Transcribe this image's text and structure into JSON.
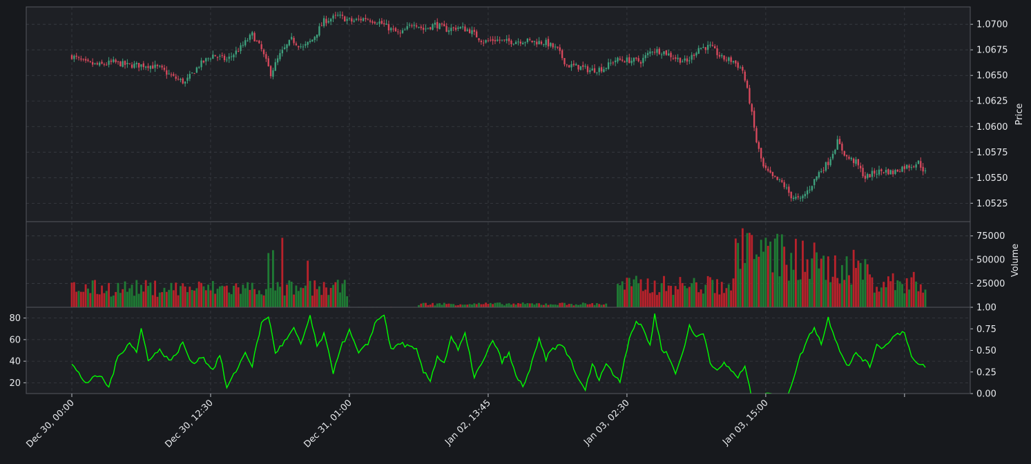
{
  "chart_data": [
    {
      "type": "candlestick",
      "panel": "price",
      "ylabel": "Price",
      "y_axis_side": "right",
      "ylim": [
        1.0507,
        1.0717
      ],
      "yticks": [
        1.0525,
        1.055,
        1.0575,
        1.06,
        1.0625,
        1.065,
        1.0675,
        1.07
      ],
      "ytick_labels": [
        "1.0525",
        "1.0550",
        "1.0575",
        "1.0600",
        "1.0625",
        "1.0650",
        "1.0675",
        "1.0700"
      ],
      "grid": true,
      "colors": {
        "up": "#3fa27e",
        "down": "#d9495d"
      },
      "trend_points": [
        [
          0,
          1.0669
        ],
        [
          6,
          1.0662
        ],
        [
          12,
          1.066
        ],
        [
          18,
          1.0663
        ],
        [
          24,
          1.066
        ],
        [
          33,
          1.066
        ],
        [
          38,
          1.0657
        ],
        [
          44,
          1.0648
        ],
        [
          49,
          1.0643
        ],
        [
          55,
          1.066
        ],
        [
          61,
          1.067
        ],
        [
          67,
          1.0665
        ],
        [
          73,
          1.0677
        ],
        [
          78,
          1.069
        ],
        [
          82,
          1.0675
        ],
        [
          86,
          1.0652
        ],
        [
          90,
          1.067
        ],
        [
          95,
          1.0685
        ],
        [
          100,
          1.0677
        ],
        [
          104,
          1.0685
        ],
        [
          109,
          1.0703
        ],
        [
          115,
          1.0708
        ],
        [
          121,
          1.0703
        ],
        [
          127,
          1.0706
        ],
        [
          133,
          1.0702
        ],
        [
          138,
          1.0695
        ],
        [
          142,
          1.069
        ],
        [
          148,
          1.0702
        ],
        [
          152,
          1.0695
        ],
        [
          157,
          1.07
        ],
        [
          162,
          1.0695
        ],
        [
          167,
          1.0697
        ],
        [
          172,
          1.0694
        ],
        [
          178,
          1.0683
        ],
        [
          183,
          1.0685
        ],
        [
          188,
          1.0683
        ],
        [
          195,
          1.0684
        ],
        [
          200,
          1.0683
        ],
        [
          205,
          1.0682
        ],
        [
          210,
          1.0675
        ],
        [
          214,
          1.066
        ],
        [
          220,
          1.0658
        ],
        [
          224,
          1.0655
        ],
        [
          230,
          1.0657
        ],
        [
          235,
          1.0665
        ],
        [
          240,
          1.0665
        ],
        [
          246,
          1.0664
        ],
        [
          251,
          1.0675
        ],
        [
          256,
          1.0673
        ],
        [
          261,
          1.0667
        ],
        [
          266,
          1.0663
        ],
        [
          271,
          1.0677
        ],
        [
          276,
          1.0678
        ],
        [
          281,
          1.0667
        ],
        [
          286,
          1.0664
        ],
        [
          290,
          1.0655
        ],
        [
          293,
          1.0625
        ],
        [
          296,
          1.0585
        ],
        [
          299,
          1.056
        ],
        [
          303,
          1.055
        ],
        [
          307,
          1.0545
        ],
        [
          311,
          1.0532
        ],
        [
          315,
          1.0528
        ],
        [
          319,
          1.054
        ],
        [
          323,
          1.0555
        ],
        [
          327,
          1.0565
        ],
        [
          331,
          1.0585
        ],
        [
          335,
          1.057
        ],
        [
          339,
          1.0565
        ],
        [
          343,
          1.055
        ],
        [
          347,
          1.0555
        ],
        [
          351,
          1.0557
        ],
        [
          355,
          1.0555
        ],
        [
          359,
          1.056
        ],
        [
          363,
          1.0562
        ],
        [
          366,
          1.0565
        ],
        [
          369,
          1.0555
        ]
      ],
      "n_candles": 370,
      "xticks": [
        0,
        60,
        120,
        180,
        240,
        300,
        360
      ],
      "xtick_labels": [
        "Dec 30, 00:00",
        "Dec 30, 12:30",
        "Dec 31, 01:00",
        "Jan 02, 13:45",
        "Jan 03, 02:30",
        "Jan 03, 15:00",
        ""
      ]
    },
    {
      "type": "bar",
      "panel": "volume",
      "ylabel": "Volume",
      "y_axis_side": "right",
      "ylim": [
        1,
        90000
      ],
      "yticks": [
        1,
        25000,
        50000,
        75000
      ],
      "ytick_labels": [
        "1.00",
        "25000",
        "50000",
        "75000"
      ],
      "grid": true,
      "colors": {
        "up": "#1f7a34",
        "down": "#b8222b"
      },
      "segments": [
        {
          "from": 0,
          "to": 120,
          "level": 20000
        },
        {
          "from": 120,
          "to": 150,
          "level": 300
        },
        {
          "from": 150,
          "to": 232,
          "level": 3500
        },
        {
          "from": 232,
          "to": 236,
          "level": 300
        },
        {
          "from": 236,
          "to": 287,
          "level": 23000
        },
        {
          "from": 287,
          "to": 310,
          "level": 55000
        },
        {
          "from": 310,
          "to": 345,
          "level": 42000
        },
        {
          "from": 345,
          "to": 370,
          "level": 26000
        }
      ],
      "spikes": [
        {
          "i": 85,
          "v": 57000
        },
        {
          "i": 87,
          "v": 60000
        },
        {
          "i": 91,
          "v": 73000
        },
        {
          "i": 102,
          "v": 49000
        },
        {
          "i": 290,
          "v": 83000
        },
        {
          "i": 292,
          "v": 78000
        },
        {
          "i": 294,
          "v": 76000
        },
        {
          "i": 313,
          "v": 72000
        },
        {
          "i": 316,
          "v": 70000
        },
        {
          "i": 321,
          "v": 68000
        }
      ]
    },
    {
      "type": "line",
      "panel": "indicator",
      "y_axis_left": {
        "ylim": [
          10,
          90
        ],
        "ticks": [
          20,
          40,
          60,
          80
        ],
        "tick_labels": [
          "20",
          "40",
          "60",
          "80"
        ]
      },
      "y_axis_right": {
        "ylim": [
          0,
          1
        ],
        "ticks": [
          0,
          0.25,
          0.5,
          0.75
        ],
        "tick_labels": [
          "0.00",
          "0.25",
          "0.50",
          "0.75"
        ]
      },
      "grid": true,
      "color": "#00ff00",
      "anchor_points": [
        [
          0,
          37
        ],
        [
          6,
          20
        ],
        [
          12,
          27
        ],
        [
          16,
          16
        ],
        [
          20,
          44
        ],
        [
          25,
          58
        ],
        [
          28,
          48
        ],
        [
          30,
          70
        ],
        [
          33,
          42
        ],
        [
          38,
          50
        ],
        [
          43,
          40
        ],
        [
          48,
          57
        ],
        [
          52,
          37
        ],
        [
          56,
          45
        ],
        [
          61,
          32
        ],
        [
          64,
          46
        ],
        [
          67,
          15
        ],
        [
          70,
          27
        ],
        [
          75,
          48
        ],
        [
          78,
          36
        ],
        [
          82,
          75
        ],
        [
          85,
          82
        ],
        [
          88,
          48
        ],
        [
          92,
          58
        ],
        [
          96,
          70
        ],
        [
          99,
          55
        ],
        [
          103,
          82
        ],
        [
          106,
          53
        ],
        [
          109,
          65
        ],
        [
          113,
          30
        ],
        [
          116,
          52
        ],
        [
          120,
          68
        ],
        [
          124,
          47
        ],
        [
          128,
          56
        ],
        [
          131,
          75
        ],
        [
          135,
          84
        ],
        [
          138,
          50
        ],
        [
          142,
          57
        ],
        [
          145,
          54
        ],
        [
          149,
          50
        ],
        [
          152,
          30
        ],
        [
          155,
          22
        ],
        [
          158,
          45
        ],
        [
          161,
          38
        ],
        [
          164,
          63
        ],
        [
          167,
          50
        ],
        [
          170,
          65
        ],
        [
          174,
          26
        ],
        [
          178,
          40
        ],
        [
          182,
          60
        ],
        [
          186,
          40
        ],
        [
          189,
          47
        ],
        [
          192,
          26
        ],
        [
          195,
          17
        ],
        [
          198,
          32
        ],
        [
          202,
          60
        ],
        [
          205,
          42
        ],
        [
          208,
          52
        ],
        [
          212,
          55
        ],
        [
          216,
          40
        ],
        [
          219,
          22
        ],
        [
          222,
          14
        ],
        [
          225,
          37
        ],
        [
          228,
          24
        ],
        [
          231,
          38
        ],
        [
          234,
          28
        ],
        [
          237,
          22
        ],
        [
          241,
          62
        ],
        [
          244,
          77
        ],
        [
          247,
          70
        ],
        [
          250,
          55
        ],
        [
          252,
          83
        ],
        [
          255,
          52
        ],
        [
          258,
          45
        ],
        [
          261,
          28
        ],
        [
          264,
          48
        ],
        [
          267,
          72
        ],
        [
          270,
          62
        ],
        [
          273,
          67
        ],
        [
          276,
          40
        ],
        [
          279,
          30
        ],
        [
          282,
          38
        ],
        [
          285,
          32
        ],
        [
          288,
          25
        ],
        [
          291,
          35
        ],
        [
          294,
          5
        ],
        [
          297,
          -5
        ],
        [
          300,
          12
        ],
        [
          303,
          10
        ],
        [
          306,
          7
        ],
        [
          309,
          5
        ],
        [
          312,
          25
        ],
        [
          315,
          45
        ],
        [
          318,
          60
        ],
        [
          321,
          72
        ],
        [
          324,
          56
        ],
        [
          327,
          80
        ],
        [
          330,
          62
        ],
        [
          333,
          45
        ],
        [
          336,
          35
        ],
        [
          339,
          48
        ],
        [
          342,
          42
        ],
        [
          345,
          35
        ],
        [
          348,
          56
        ],
        [
          351,
          52
        ],
        [
          354,
          61
        ],
        [
          357,
          65
        ],
        [
          360,
          68
        ],
        [
          363,
          44
        ],
        [
          366,
          36
        ],
        [
          369,
          35
        ]
      ]
    }
  ]
}
